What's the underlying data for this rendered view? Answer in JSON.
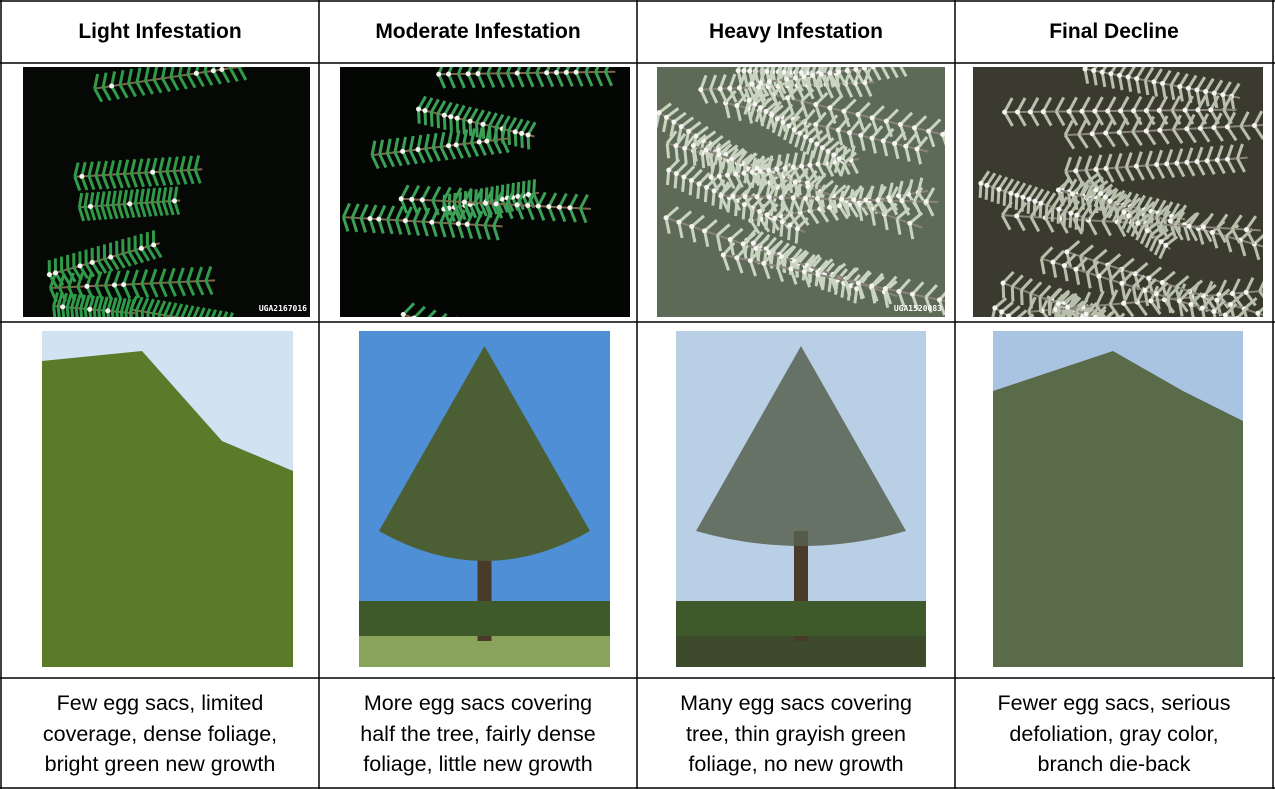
{
  "table": {
    "header": [
      "Light Infestation",
      "Moderate Infestation",
      "Heavy Infestation",
      "Final Decline"
    ],
    "image_credits": [
      "UGA2167016",
      "UGA1520083"
    ],
    "descriptions": [
      [
        "Few egg sacs, limited",
        "coverage, dense foliage,",
        "bright green new growth"
      ],
      [
        "More egg sacs covering",
        "half the tree, fairly dense",
        "foliage, little new growth"
      ],
      [
        "Many egg sacs covering",
        "tree, thin grayish green",
        "foliage, no new growth"
      ],
      [
        "Fewer egg sacs, serious",
        "defoliation, gray color,",
        "branch die-back"
      ]
    ]
  }
}
